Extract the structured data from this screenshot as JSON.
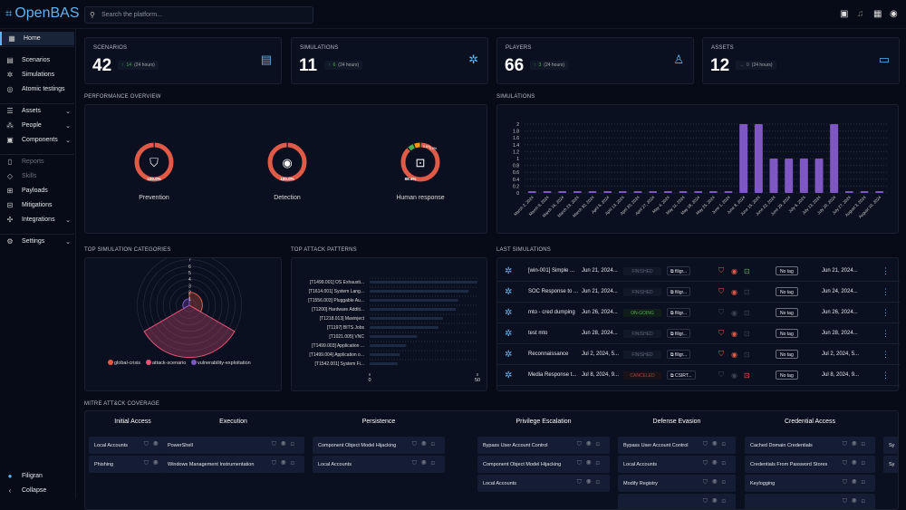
{
  "app": {
    "name": "OpenBAS",
    "search_placeholder": "Search the platform..."
  },
  "topbar": {
    "icons": [
      "devices-icon",
      "bell-icon",
      "apps-grid-icon",
      "account-icon"
    ]
  },
  "sidebar": {
    "items": [
      {
        "label": "Home",
        "icon": "dashboard-icon",
        "active": true
      },
      {
        "label": "Scenarios",
        "icon": "movie-filter-icon"
      },
      {
        "label": "Simulations",
        "icon": "hub-icon"
      },
      {
        "label": "Atomic testings",
        "icon": "target-icon"
      },
      {
        "label": "Assets",
        "icon": "dns-icon",
        "expandable": true
      },
      {
        "label": "People",
        "icon": "groups-icon",
        "expandable": true
      },
      {
        "label": "Components",
        "icon": "collections-icon",
        "expandable": true
      },
      {
        "label": "Reports",
        "icon": "report-icon",
        "disabled": true
      },
      {
        "label": "Skills",
        "icon": "badge-icon",
        "disabled": true
      },
      {
        "label": "Payloads",
        "icon": "payload-icon"
      },
      {
        "label": "Mitigations",
        "icon": "mitigation-icon"
      },
      {
        "label": "Integrations",
        "icon": "extension-icon",
        "expandable": true
      },
      {
        "label": "Settings",
        "icon": "gear-icon",
        "expandable": true
      }
    ],
    "org": "Filigran",
    "collapse": "Collapse"
  },
  "stats": [
    {
      "label": "SCENARIOS",
      "value": "42",
      "delta": "14",
      "period": "(24 hours)",
      "trend": "up",
      "icon": "movie-filter-icon"
    },
    {
      "label": "SIMULATIONS",
      "value": "11",
      "delta": "6",
      "period": "(24 hours)",
      "trend": "up",
      "icon": "hub-icon"
    },
    {
      "label": "PLAYERS",
      "value": "66",
      "delta": "3",
      "period": "(24 hours)",
      "trend": "up",
      "icon": "person-icon"
    },
    {
      "label": "ASSETS",
      "value": "12",
      "delta": "0",
      "period": "(24 hours)",
      "trend": "flat",
      "icon": "laptop-icon"
    }
  ],
  "performance": {
    "title": "PERFORMANCE OVERVIEW",
    "items": [
      {
        "label": "Prevention",
        "icon": "shield-icon",
        "segments": [
          {
            "value": 100,
            "text": "100.0%",
            "color": "#e05a47"
          }
        ]
      },
      {
        "label": "Detection",
        "icon": "radar-icon",
        "segments": [
          {
            "value": 100,
            "text": "100.0%",
            "color": "#e05a47"
          }
        ]
      },
      {
        "label": "Human response",
        "icon": "person-scan-icon",
        "segments": [
          {
            "value": 88.4,
            "text": "88.4%",
            "color": "#e05a47"
          },
          {
            "value": 5.8,
            "text": "5.8%",
            "color": "#4caf50"
          },
          {
            "value": 5.8,
            "text": "5.8%",
            "color": "#ff9800"
          }
        ]
      }
    ]
  },
  "chart_data": [
    {
      "type": "bar",
      "title": "SIMULATIONS",
      "categories": [
        "March 2, 2024",
        "March 9, 2024",
        "March 16, 2024",
        "March 23, 2024",
        "March 30, 2024",
        "April 6, 2024",
        "April 13, 2024",
        "April 20, 2024",
        "April 27, 2024",
        "May 4, 2024",
        "May 11, 2024",
        "May 18, 2024",
        "May 25, 2024",
        "June 1, 2024",
        "June 8, 2024",
        "June 15, 2024",
        "June 22, 2024",
        "June 29, 2024",
        "July 6, 2024",
        "July 13, 2024",
        "July 20, 2024",
        "July 27, 2024",
        "August 3, 2024",
        "August 10, 2024"
      ],
      "values": [
        0,
        0,
        0,
        0,
        0,
        0,
        0,
        0,
        0,
        0,
        0,
        0,
        0,
        0,
        2,
        2,
        1,
        1,
        1,
        1,
        2,
        0,
        0,
        0
      ],
      "ylim": [
        0,
        2
      ],
      "yticks": [
        "0",
        "0.2",
        "0.4",
        "0.6",
        "0.8",
        "1",
        "1.2",
        "1.4",
        "1.6",
        "1.8",
        "2"
      ],
      "color": "#7e57c2",
      "grid": true
    },
    {
      "type": "polar-area",
      "title": "TOP SIMULATION CATEGORIES",
      "categories": [
        "global-crisis",
        "attack-scenario",
        "vulnerability-exploitation"
      ],
      "values": [
        2,
        8,
        1
      ],
      "colors": [
        "#e05a47",
        "#e8537a",
        "#7e57c2"
      ],
      "rticks": [
        "1",
        "2",
        "3",
        "4",
        "5",
        "6",
        "7",
        "8"
      ],
      "legend": "bottom"
    },
    {
      "type": "bar",
      "orientation": "horizontal",
      "title": "TOP ATTACK PATTERNS",
      "categories": [
        "[T1499.001] OS Exhausti...",
        "[T1614.001] System Lang...",
        "[T1556.003] Pluggable Au...",
        "[T1200] Hardware Additi...",
        "[T1218.013] Mavinject",
        "[T1197] BITS Jobs",
        "[T1021.005] VNC",
        "[T1499.003] Application ...",
        "[T1499.004] Application o...",
        "[T1542.001] System Fi..."
      ],
      "values": [
        50,
        46,
        41,
        40,
        34,
        32,
        22,
        17,
        14,
        13
      ],
      "xticks": [
        "0",
        "50"
      ],
      "xlim": [
        0,
        50
      ],
      "color": "#1e2a44"
    }
  ],
  "last_simulations": {
    "title": "LAST SIMULATIONS",
    "rows": [
      {
        "name": "[win-001] Simple ...",
        "start": "Jun 21, 2024...",
        "status": "FINISHED",
        "platform": "filigr...",
        "prev": "red",
        "det": "red",
        "hr": "green",
        "tag": "No tag",
        "updated": "Jun 21, 2024..."
      },
      {
        "name": "SOC Response to ...",
        "start": "Jun 21, 2024...",
        "status": "FINISHED",
        "platform": "filigr...",
        "prev": "red",
        "det": "red",
        "hr": "grey",
        "tag": "No tag",
        "updated": "Jun 24, 2024..."
      },
      {
        "name": "mto - cred dumping",
        "start": "Jun 26, 2024...",
        "status": "ON-GOING",
        "platform": "filigr...",
        "prev": "grey",
        "det": "grey",
        "hr": "grey",
        "tag": "No tag",
        "updated": "Jun 26, 2024..."
      },
      {
        "name": "test mto",
        "start": "Jun 28, 2024...",
        "status": "FINISHED",
        "platform": "filigr...",
        "prev": "red",
        "det": "red",
        "hr": "grey",
        "tag": "No tag",
        "updated": "Jun 28, 2024..."
      },
      {
        "name": "Reconnaissance",
        "start": "Jul 2, 2024, 5...",
        "status": "FINISHED",
        "platform": "filigr...",
        "prev": "red",
        "det": "red",
        "hr": "grey",
        "tag": "No tag",
        "updated": "Jul 2, 2024, 5..."
      },
      {
        "name": "Media Response t...",
        "start": "Jul 8, 2024, 9...",
        "status": "CANCELED",
        "platform": "CSIRT...",
        "prev": "grey",
        "det": "grey",
        "hr": "red",
        "tag": "No tag",
        "updated": "Jul 8, 2024, 9..."
      }
    ]
  },
  "mitre": {
    "title": "MITRE ATT&CK COVERAGE",
    "columns": [
      {
        "title": "Initial Access",
        "items": [
          "Local Accounts",
          "Phishing"
        ]
      },
      {
        "title": "Execution",
        "items": [
          "PowerShell",
          "Windows Management Instrumentation"
        ]
      },
      {
        "title": "Persistence",
        "items": [
          "Component Object Model Hijacking",
          "Local Accounts"
        ]
      },
      {
        "title": "Privilege Escalation",
        "items": [
          "Bypass User Account Control",
          "Component Object Model Hijacking",
          "Local Accounts"
        ]
      },
      {
        "title": "Defense Evasion",
        "items": [
          "Bypass User Account Control",
          "Local Accounts",
          "Modify Registry",
          ""
        ]
      },
      {
        "title": "Credential Access",
        "items": [
          "Cached Domain Credentials",
          "Credentials From Password Stores",
          "Keylogging",
          ""
        ]
      },
      {
        "title": "",
        "items": [
          "Sy",
          "Sy"
        ]
      }
    ]
  }
}
